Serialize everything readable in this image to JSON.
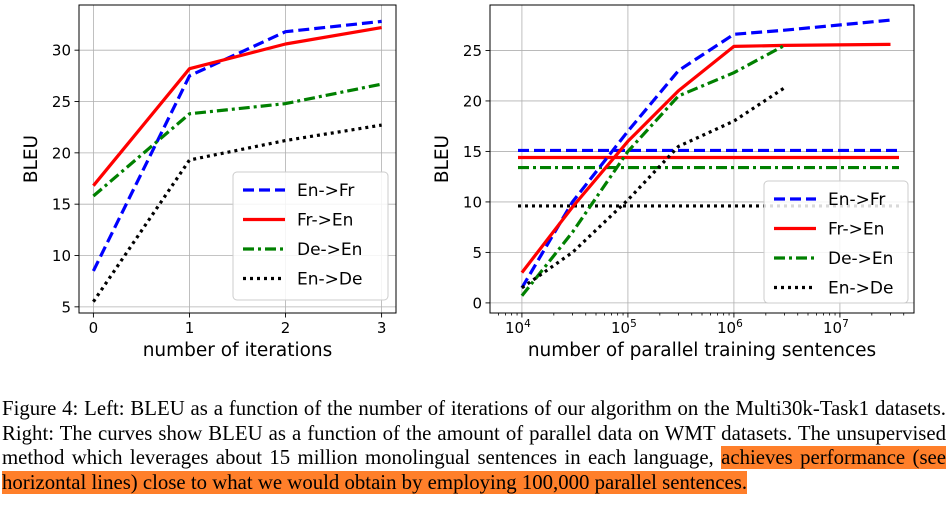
{
  "colors": {
    "en_fr": "#0000ff",
    "fr_en": "#ff0000",
    "de_en": "#008000",
    "en_de": "#000000",
    "grid": "#b0b0b0",
    "highlight": "#ff7f2a"
  },
  "legend": {
    "entries": [
      "En->Fr",
      "Fr->En",
      "De->En",
      "En->De"
    ]
  },
  "chart_data": [
    {
      "type": "line",
      "title": "",
      "xlabel": "number of iterations",
      "ylabel": "BLEU",
      "x": [
        0,
        1,
        2,
        3
      ],
      "xlim": [
        -0.15,
        3.15
      ],
      "ylim": [
        4.4,
        34.4
      ],
      "xticks": [
        0,
        1,
        2,
        3
      ],
      "yticks": [
        5,
        10,
        15,
        20,
        25,
        30
      ],
      "grid": true,
      "legend_position": "lower-right",
      "series": [
        {
          "name": "En->Fr",
          "style": "dashed",
          "values": [
            8.5,
            27.5,
            31.8,
            32.8
          ]
        },
        {
          "name": "Fr->En",
          "style": "solid",
          "values": [
            16.8,
            28.2,
            30.6,
            32.2
          ]
        },
        {
          "name": "De->En",
          "style": "dashdot",
          "values": [
            15.8,
            23.8,
            24.8,
            26.7
          ]
        },
        {
          "name": "En->De",
          "style": "dotted",
          "values": [
            5.5,
            19.3,
            21.2,
            22.7
          ]
        }
      ]
    },
    {
      "type": "line",
      "title": "",
      "xlabel": "number of parallel training sentences",
      "ylabel": "BLEU",
      "xscale": "log",
      "xlim": [
        5000,
        50000000
      ],
      "ylim": [
        -1.0,
        29.5
      ],
      "xticks": [
        10000,
        100000,
        1000000,
        10000000
      ],
      "xticklabels": [
        "10",
        "10",
        "10",
        "10"
      ],
      "xtick_exponents": [
        "4",
        "5",
        "6",
        "7"
      ],
      "yticks": [
        0,
        5,
        10,
        15,
        20,
        25
      ],
      "grid": true,
      "legend_position": "lower-right",
      "series": [
        {
          "name": "En->Fr",
          "style": "dashed",
          "x": [
            10000,
            30000,
            100000,
            300000,
            1000000,
            3000000,
            30000000
          ],
          "values": [
            1.5,
            10.0,
            17.0,
            23.0,
            26.6,
            27.0,
            28.0
          ]
        },
        {
          "name": "Fr->En",
          "style": "solid",
          "x": [
            10000,
            30000,
            100000,
            300000,
            1000000,
            3000000,
            30000000
          ],
          "values": [
            3.0,
            9.5,
            16.0,
            21.0,
            25.4,
            25.5,
            25.6
          ]
        },
        {
          "name": "De->En",
          "style": "dashdot",
          "x": [
            10000,
            30000,
            100000,
            300000,
            1000000,
            3000000
          ],
          "values": [
            0.7,
            7.0,
            15.0,
            20.5,
            22.8,
            25.5
          ]
        },
        {
          "name": "En->De",
          "style": "dotted",
          "x": [
            10000,
            30000,
            100000,
            300000,
            1000000,
            3000000
          ],
          "values": [
            1.5,
            5.0,
            10.2,
            15.5,
            18.0,
            21.3
          ]
        }
      ],
      "horizontal_lines": [
        {
          "name": "En->Fr",
          "style": "dashed",
          "y": 15.1
        },
        {
          "name": "Fr->En",
          "style": "solid",
          "y": 14.4
        },
        {
          "name": "De->En",
          "style": "dashdot",
          "y": 13.4
        },
        {
          "name": "En->De",
          "style": "dotted",
          "y": 9.6
        }
      ]
    }
  ],
  "caption": {
    "text_plain": "Figure 4: Left: BLEU as a function of the number of iterations of our algorithm on the Multi30k-Task1 datasets. Right: The curves show BLEU as a function of the amount of parallel data on WMT datasets. The unsupervised method which leverages about 15 million monolingual sentences in each language,",
    "text_highlighted": "achieves performance (see horizontal lines) close to what we would obtain by employing 100,000 parallel sentences."
  }
}
